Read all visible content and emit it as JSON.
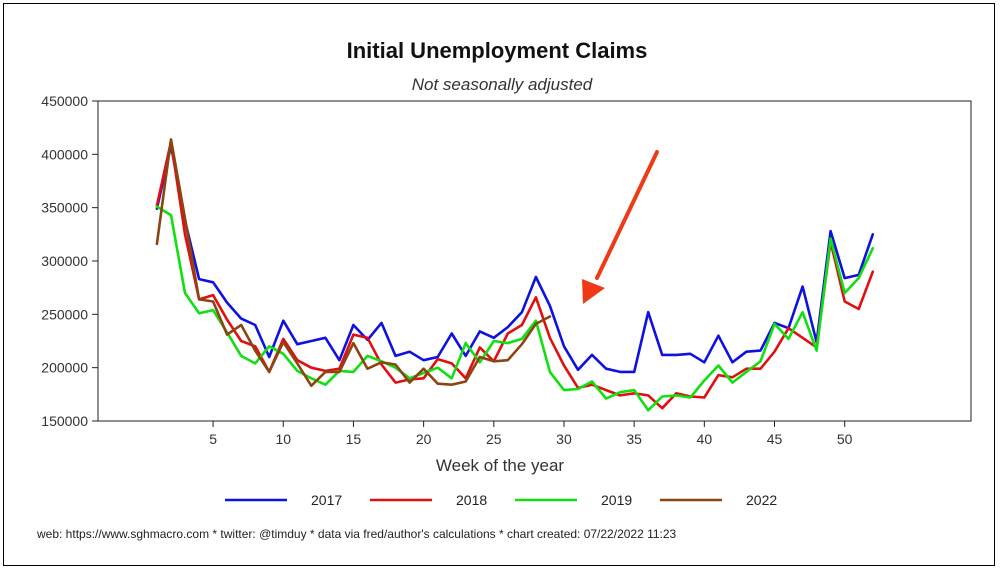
{
  "chart_data": {
    "type": "line",
    "title": "Initial Unemployment Claims",
    "subtitle": "Not seasonally adjusted",
    "xlabel": "Week of the year",
    "ylabel": "",
    "xlim": [
      -3.2,
      59
    ],
    "ylim": [
      150000,
      450000
    ],
    "x_ticks": [
      5,
      10,
      15,
      20,
      25,
      30,
      35,
      40,
      45,
      50
    ],
    "y_ticks": [
      150000,
      200000,
      250000,
      300000,
      350000,
      400000,
      450000
    ],
    "grid": false,
    "legend_position": "bottom",
    "series": [
      {
        "name": "2017",
        "color": "#1010e0",
        "x": [
          1,
          2,
          3,
          4,
          5,
          6,
          7,
          8,
          9,
          10,
          11,
          12,
          13,
          14,
          15,
          16,
          17,
          18,
          19,
          20,
          21,
          22,
          23,
          24,
          25,
          26,
          27,
          28,
          29,
          30,
          31,
          32,
          33,
          34,
          35,
          36,
          37,
          38,
          39,
          40,
          41,
          42,
          43,
          44,
          45,
          46,
          47,
          48,
          49,
          50,
          51,
          52
        ],
        "values": [
          349000,
          408000,
          338000,
          283000,
          280000,
          261000,
          246000,
          240000,
          210000,
          244000,
          222000,
          225000,
          228000,
          207000,
          240000,
          226000,
          242000,
          211000,
          215000,
          207000,
          210000,
          232000,
          211000,
          234000,
          228000,
          238000,
          252000,
          285000,
          258000,
          220000,
          198000,
          212000,
          199000,
          196000,
          196000,
          252000,
          212000,
          212000,
          213000,
          205000,
          230000,
          205000,
          215000,
          216000,
          242000,
          237000,
          276000,
          224000,
          328000,
          284000,
          287000,
          325000
        ]
      },
      {
        "name": "2018",
        "color": "#e01010",
        "x": [
          1,
          2,
          3,
          4,
          5,
          6,
          7,
          8,
          9,
          10,
          11,
          12,
          13,
          14,
          15,
          16,
          17,
          18,
          19,
          20,
          21,
          22,
          23,
          24,
          25,
          26,
          27,
          28,
          29,
          30,
          31,
          32,
          33,
          34,
          35,
          36,
          37,
          38,
          39,
          40,
          41,
          42,
          43,
          44,
          45,
          46,
          47,
          48,
          49,
          50,
          51,
          52
        ],
        "values": [
          352000,
          412000,
          325000,
          264000,
          268000,
          245000,
          225000,
          220000,
          196000,
          227000,
          207000,
          200000,
          197000,
          199000,
          231000,
          228000,
          203000,
          186000,
          189000,
          190000,
          208000,
          204000,
          190000,
          219000,
          206000,
          232000,
          240000,
          266000,
          228000,
          202000,
          181000,
          184000,
          179000,
          174000,
          176000,
          174000,
          162000,
          176000,
          173000,
          172000,
          193000,
          191000,
          199000,
          199000,
          215000,
          237000,
          228000,
          219000,
          318000,
          262000,
          255000,
          290000
        ]
      },
      {
        "name": "2019",
        "color": "#10e010",
        "x": [
          1,
          2,
          3,
          4,
          5,
          6,
          7,
          8,
          9,
          10,
          11,
          12,
          13,
          14,
          15,
          16,
          17,
          18,
          19,
          20,
          21,
          22,
          23,
          24,
          25,
          26,
          27,
          28,
          29,
          30,
          31,
          32,
          33,
          34,
          35,
          36,
          37,
          38,
          39,
          40,
          41,
          42,
          43,
          44,
          45,
          46,
          47,
          48,
          49,
          50,
          51,
          52
        ],
        "values": [
          351000,
          343000,
          270000,
          251000,
          254000,
          233000,
          211000,
          204000,
          220000,
          213000,
          197000,
          190000,
          184000,
          197000,
          196000,
          211000,
          206000,
          200000,
          190000,
          195000,
          200000,
          190000,
          223000,
          205000,
          225000,
          223000,
          227000,
          244000,
          196000,
          179000,
          180000,
          187000,
          171000,
          177000,
          179000,
          160000,
          173000,
          174000,
          172000,
          188000,
          202000,
          186000,
          196000,
          206000,
          241000,
          227000,
          252000,
          216000,
          321000,
          270000,
          284000,
          312000
        ]
      },
      {
        "name": "2022",
        "color": "#8b4513",
        "x": [
          1,
          2,
          3,
          4,
          5,
          6,
          7,
          8,
          9,
          10,
          11,
          12,
          13,
          14,
          15,
          16,
          17,
          18,
          19,
          20,
          21,
          22,
          23,
          24,
          25,
          26,
          27,
          28,
          29
        ],
        "values": [
          316000,
          414000,
          340000,
          264000,
          262000,
          231000,
          240000,
          216000,
          196000,
          224000,
          204000,
          183000,
          196000,
          196000,
          223000,
          199000,
          205000,
          203000,
          186000,
          199000,
          185000,
          184000,
          187000,
          210000,
          206000,
          207000,
          222000,
          241000,
          248000
        ]
      }
    ]
  },
  "footer": "web: https://www.sghmacro.com * twitter: @timduy * data via fred/author's calculations * chart created: 07/22/2022 11:23"
}
